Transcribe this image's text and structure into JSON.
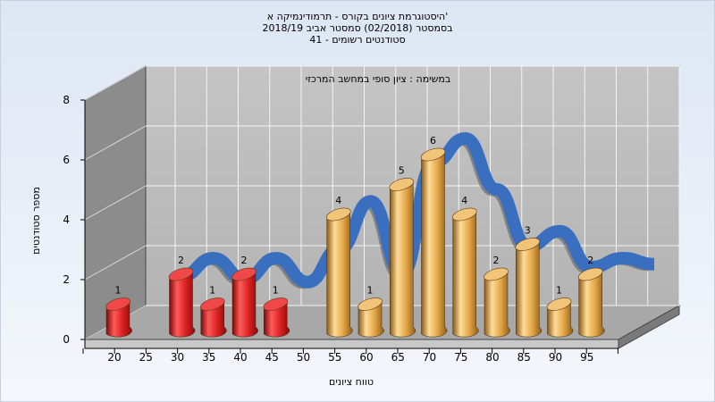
{
  "titles": [
    "היסטוגרמת ציונים בקורס - תרמודינמיקה א'",
    "בסמסטר  (02/2018)  סמסטר אביב 2018/19",
    "סטודנטים רשומים - 41"
  ],
  "chart_data": {
    "type": "bar",
    "annotation": "במשימה : ציון סופי במחשב המרכזי",
    "xlabel": "טווח ציונים",
    "ylabel": "מספר סטודנטים",
    "x_tick_labels": [
      "20",
      "25",
      "30",
      "35",
      "40",
      "45",
      "50",
      "55",
      "60",
      "65",
      "70",
      "75",
      "80",
      "85",
      "90",
      "95"
    ],
    "y_ticks": [
      0,
      2,
      4,
      6,
      8
    ],
    "ylim": [
      0,
      8
    ],
    "grid": true,
    "bars": [
      {
        "x": 20,
        "value": 1,
        "color": "red"
      },
      {
        "x": 30,
        "value": 2,
        "color": "red"
      },
      {
        "x": 35,
        "value": 1,
        "color": "red"
      },
      {
        "x": 40,
        "value": 2,
        "color": "red"
      },
      {
        "x": 45,
        "value": 1,
        "color": "red"
      },
      {
        "x": 55,
        "value": 4,
        "color": "orange"
      },
      {
        "x": 60,
        "value": 1,
        "color": "orange"
      },
      {
        "x": 65,
        "value": 5,
        "color": "orange"
      },
      {
        "x": 70,
        "value": 6,
        "color": "orange"
      },
      {
        "x": 75,
        "value": 4,
        "color": "orange"
      },
      {
        "x": 80,
        "value": 2,
        "color": "orange"
      },
      {
        "x": 85,
        "value": 3,
        "color": "orange"
      },
      {
        "x": 90,
        "value": 1,
        "color": "orange"
      },
      {
        "x": 95,
        "value": 2,
        "color": "orange"
      }
    ],
    "curve": {
      "x": [
        25,
        30,
        35,
        40,
        45,
        50,
        55,
        60,
        65,
        70,
        75,
        80,
        85,
        90,
        95,
        100
      ],
      "y": [
        1.4,
        2,
        1.3,
        2,
        1.2,
        2.3,
        3.9,
        1.5,
        5.2,
        6.0,
        4.3,
        2.4,
        2.9,
        1.7,
        2.0,
        1.8
      ]
    },
    "colors": {
      "red": "#d42020",
      "orange": "#e0a040",
      "curve": "#3a6fc0",
      "wall": "#b8b8b8",
      "side_wall": "#8c8c8c"
    }
  }
}
